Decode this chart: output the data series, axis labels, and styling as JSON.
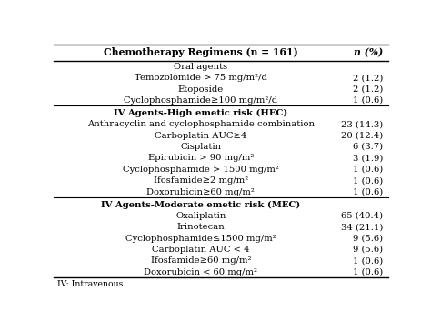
{
  "title_col1": "Chemotherapy Regimens (n = 161)",
  "title_col2": "n (%)",
  "rows": [
    {
      "label": "Oral agents",
      "value": "",
      "is_section": true,
      "bold": false
    },
    {
      "label": "Temozolomide > 75 mg/m²/d",
      "value": "2 (1.2)",
      "is_section": false,
      "bold": false
    },
    {
      "label": "Etoposide",
      "value": "2 (1.2)",
      "is_section": false,
      "bold": false
    },
    {
      "label": "Cyclophosphamide≥100 mg/m²/d",
      "value": "1 (0.6)",
      "is_section": false,
      "bold": false
    },
    {
      "label": "IV Agents-High emetic risk (HEC)",
      "value": "",
      "is_section": true,
      "bold": true
    },
    {
      "label": "Anthracyclin and cyclophosphamide combination",
      "value": "23 (14.3)",
      "is_section": false,
      "bold": false
    },
    {
      "label": "Carboplatin AUC≥4",
      "value": "20 (12.4)",
      "is_section": false,
      "bold": false
    },
    {
      "label": "Cisplatin",
      "value": "6 (3.7)",
      "is_section": false,
      "bold": false
    },
    {
      "label": "Epirubicin > 90 mg/m²",
      "value": "3 (1.9)",
      "is_section": false,
      "bold": false
    },
    {
      "label": "Cyclophosphamide > 1500 mg/m²",
      "value": "1 (0.6)",
      "is_section": false,
      "bold": false
    },
    {
      "label": "Ifosfamide≥2 mg/m²",
      "value": "1 (0.6)",
      "is_section": false,
      "bold": false
    },
    {
      "label": "Doxorubicin≥60 mg/m²",
      "value": "1 (0.6)",
      "is_section": false,
      "bold": false
    },
    {
      "label": "IV Agents-Moderate emetic risk (MEC)",
      "value": "",
      "is_section": true,
      "bold": true
    },
    {
      "label": "Oxaliplatin",
      "value": "65 (40.4)",
      "is_section": false,
      "bold": false
    },
    {
      "label": "Irinotecan",
      "value": "34 (21.1)",
      "is_section": false,
      "bold": false
    },
    {
      "label": "Cyclophosphamide≤1500 mg/m²",
      "value": "9 (5.6)",
      "is_section": false,
      "bold": false
    },
    {
      "label": "Carboplatin AUC < 4",
      "value": "9 (5.6)",
      "is_section": false,
      "bold": false
    },
    {
      "label": "Ifosfamide≥60 mg/m²",
      "value": "1 (0.6)",
      "is_section": false,
      "bold": false
    },
    {
      "label": "Doxorubicin < 60 mg/m²",
      "value": "1 (0.6)",
      "is_section": false,
      "bold": false
    }
  ],
  "footnote": "IV: Intravenous.",
  "separator_after": [
    3,
    11
  ],
  "bg_color": "#ffffff",
  "text_color": "#000000",
  "border_color": "#000000",
  "font_size": 7.2,
  "header_font_size": 7.8
}
